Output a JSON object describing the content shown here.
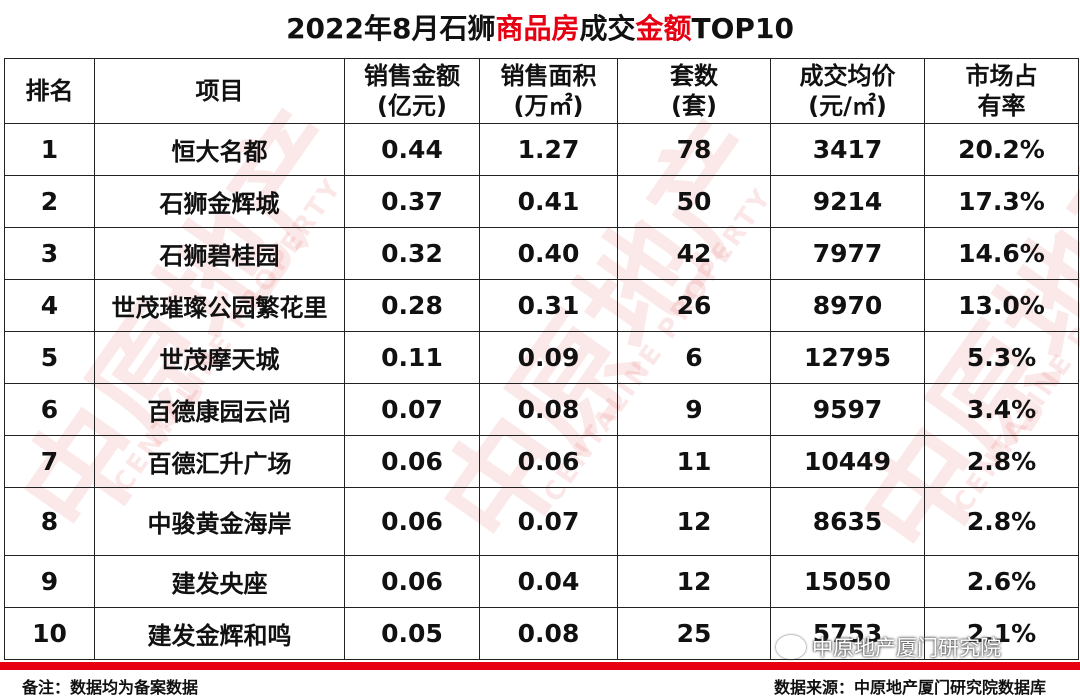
{
  "title": {
    "prefix": "2022年8月石狮",
    "hl1": "商品房",
    "mid": "成交",
    "hl2": "金额",
    "suffix": "TOP10"
  },
  "headers": {
    "rank": "排名",
    "project": "项目",
    "amount": [
      "销售金额",
      "(亿元)"
    ],
    "area": [
      "销售面积",
      "(万㎡)"
    ],
    "units": [
      "套数",
      "(套)"
    ],
    "price": [
      "成交均价",
      "(元/㎡)"
    ],
    "share": [
      "市场占",
      "有率"
    ]
  },
  "rows": [
    {
      "rank": "1",
      "project": "恒大名都",
      "amount": "0.44",
      "area": "1.27",
      "units": "78",
      "price": "3417",
      "share": "20.2%"
    },
    {
      "rank": "2",
      "project": "石狮金辉城",
      "amount": "0.37",
      "area": "0.41",
      "units": "50",
      "price": "9214",
      "share": "17.3%"
    },
    {
      "rank": "3",
      "project": "石狮碧桂园",
      "amount": "0.32",
      "area": "0.40",
      "units": "42",
      "price": "7977",
      "share": "14.6%"
    },
    {
      "rank": "4",
      "project": "世茂璀璨公园繁花里",
      "amount": "0.28",
      "area": "0.31",
      "units": "26",
      "price": "8970",
      "share": "13.0%"
    },
    {
      "rank": "5",
      "project": "世茂摩天城",
      "amount": "0.11",
      "area": "0.09",
      "units": "6",
      "price": "12795",
      "share": "5.3%"
    },
    {
      "rank": "6",
      "project": "百德康园云尚",
      "amount": "0.07",
      "area": "0.08",
      "units": "9",
      "price": "9597",
      "share": "3.4%"
    },
    {
      "rank": "7",
      "project": "百德汇升广场",
      "amount": "0.06",
      "area": "0.06",
      "units": "11",
      "price": "10449",
      "share": "2.8%"
    },
    {
      "rank": "8",
      "project": "中骏黄金海岸",
      "amount": "0.06",
      "area": "0.07",
      "units": "12",
      "price": "8635",
      "share": "2.8%"
    },
    {
      "rank": "9",
      "project": "建发央座",
      "amount": "0.06",
      "area": "0.04",
      "units": "12",
      "price": "15050",
      "share": "2.6%"
    },
    {
      "rank": "10",
      "project": "建发金辉和鸣",
      "amount": "0.05",
      "area": "0.08",
      "units": "25",
      "price": "5753",
      "share": "2.1%"
    }
  ],
  "footer": {
    "note": "备注：数据均为备案数据",
    "source": "数据来源：中原地产厦门研究院数据库"
  },
  "wechat_badge": "中原地产厦门研究院",
  "watermark": {
    "cn": "中原地产",
    "en": "CENTALINE PROPERTY"
  },
  "colors": {
    "accent": "#e60012",
    "watermark": "#dc2828"
  }
}
